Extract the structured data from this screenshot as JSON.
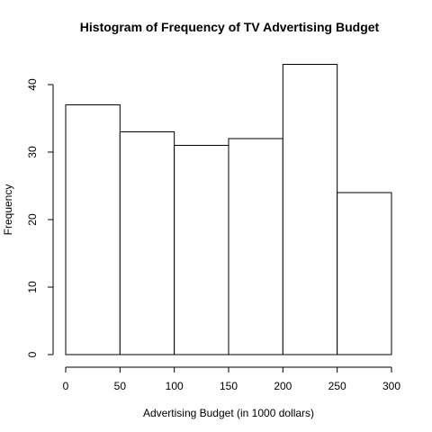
{
  "chart_data": {
    "type": "bar",
    "title": "Histogram of Frequency of TV Advertising Budget",
    "xlabel": "Advertising Budget (in 1000 dollars)",
    "ylabel": "Frequency",
    "bins": [
      {
        "start": 0,
        "end": 50,
        "value": 37
      },
      {
        "start": 50,
        "end": 100,
        "value": 33
      },
      {
        "start": 100,
        "end": 150,
        "value": 31
      },
      {
        "start": 150,
        "end": 200,
        "value": 32
      },
      {
        "start": 200,
        "end": 250,
        "value": 43
      },
      {
        "start": 250,
        "end": 300,
        "value": 24
      }
    ],
    "x_ticks": [
      0,
      50,
      100,
      150,
      200,
      250,
      300
    ],
    "y_ticks": [
      0,
      10,
      20,
      30,
      40
    ],
    "xlim": [
      0,
      300
    ],
    "ylim": [
      0,
      43
    ],
    "grid": false,
    "legend": "none"
  }
}
